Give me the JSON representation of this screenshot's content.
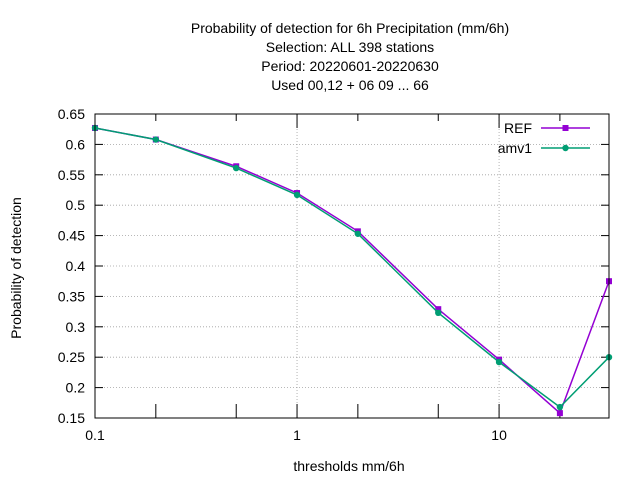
{
  "chart_data": {
    "type": "line",
    "title_lines": [
      "Probability of detection  for 6h Precipitation (mm/6h)",
      "Selection: ALL    398 stations",
      "Period: 20220601-20220630",
      "Used  00,12  + 06 09 ... 66"
    ],
    "xlabel": "thresholds mm/6h",
    "ylabel": "Probability of detection",
    "x_scale": "log",
    "xlim": [
      0.1,
      35
    ],
    "ylim": [
      0.15,
      0.65
    ],
    "x_tick_labels": [
      {
        "value": 0.1,
        "label": "0.1"
      },
      {
        "value": 1,
        "label": "1"
      },
      {
        "value": 10,
        "label": "10"
      }
    ],
    "x_minor_ticks": [
      0.2,
      0.5,
      2,
      5,
      20
    ],
    "y_ticks": [
      {
        "value": 0.15,
        "label": "0.15"
      },
      {
        "value": 0.2,
        "label": "0.2"
      },
      {
        "value": 0.25,
        "label": "0.25"
      },
      {
        "value": 0.3,
        "label": "0.3"
      },
      {
        "value": 0.35,
        "label": "0.35"
      },
      {
        "value": 0.4,
        "label": "0.4"
      },
      {
        "value": 0.45,
        "label": "0.45"
      },
      {
        "value": 0.5,
        "label": "0.5"
      },
      {
        "value": 0.55,
        "label": "0.55"
      },
      {
        "value": 0.6,
        "label": "0.6"
      },
      {
        "value": 0.65,
        "label": "0.65"
      }
    ],
    "grid": true,
    "legend_position": "top-right",
    "x": [
      0.1,
      0.2,
      0.5,
      1,
      2,
      5,
      10,
      20,
      35
    ],
    "series": [
      {
        "name": "REF",
        "color": "#9400d3",
        "marker": "square",
        "values": [
          0.627,
          0.608,
          0.564,
          0.52,
          0.457,
          0.329,
          0.246,
          0.158,
          0.375
        ]
      },
      {
        "name": "amv1",
        "color": "#009e73",
        "marker": "circle",
        "values": [
          0.627,
          0.608,
          0.561,
          0.517,
          0.453,
          0.323,
          0.242,
          0.168,
          0.25
        ]
      }
    ]
  }
}
